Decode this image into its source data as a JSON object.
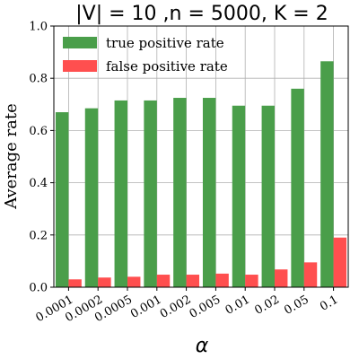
{
  "chart_data": {
    "type": "bar",
    "title": "|V| = 10 ,n = 5000, K = 2",
    "xlabel": "α",
    "ylabel": "Average rate",
    "categories": [
      "0.0001",
      "0.0002",
      "0.0005",
      "0.001",
      "0.002",
      "0.005",
      "0.01",
      "0.02",
      "0.05",
      "0.1"
    ],
    "series": [
      {
        "name": "true positive rate",
        "color": "#4a9e4a",
        "values": [
          0.67,
          0.685,
          0.715,
          0.715,
          0.725,
          0.725,
          0.695,
          0.695,
          0.76,
          0.865
        ]
      },
      {
        "name": "false positive rate",
        "color": "#ff4f4f",
        "values": [
          0.03,
          0.037,
          0.04,
          0.048,
          0.048,
          0.052,
          0.048,
          0.068,
          0.095,
          0.19
        ]
      }
    ],
    "ylim": [
      0,
      1.0
    ],
    "yticks": [
      "0.0",
      "0.2",
      "0.4",
      "0.6",
      "0.8",
      "1.0"
    ],
    "grid": true,
    "legend_position": "top-left"
  }
}
